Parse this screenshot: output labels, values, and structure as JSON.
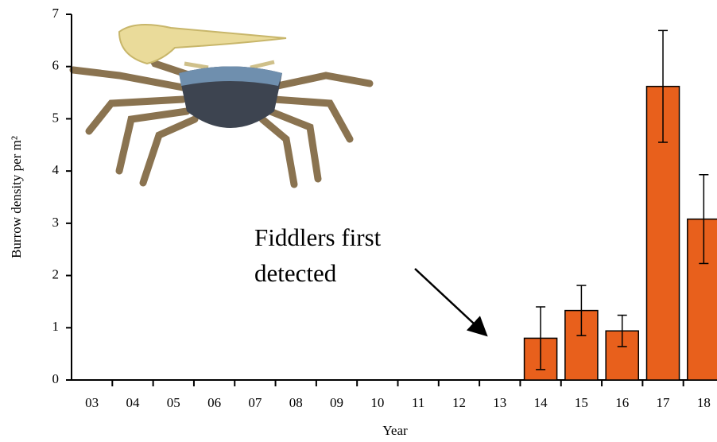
{
  "chart_data": {
    "type": "bar",
    "x_label": "Year",
    "y_label": "Burrow density per m²",
    "annotation": [
      "Fiddlers first",
      "detected"
    ],
    "categories": [
      "03",
      "04",
      "05",
      "06",
      "07",
      "08",
      "09",
      "10",
      "11",
      "12",
      "13",
      "14",
      "15",
      "16",
      "17",
      "18"
    ],
    "values": [
      null,
      null,
      null,
      null,
      null,
      null,
      null,
      null,
      null,
      null,
      null,
      0.8,
      1.33,
      0.94,
      5.62,
      3.08
    ],
    "errors": [
      null,
      null,
      null,
      null,
      null,
      null,
      null,
      null,
      null,
      null,
      null,
      0.6,
      0.48,
      0.3,
      1.07,
      0.85
    ],
    "color": "#e8601c",
    "ylim": [
      0,
      7
    ],
    "yticks": [
      0,
      1,
      2,
      3,
      4,
      5,
      6,
      7
    ]
  }
}
